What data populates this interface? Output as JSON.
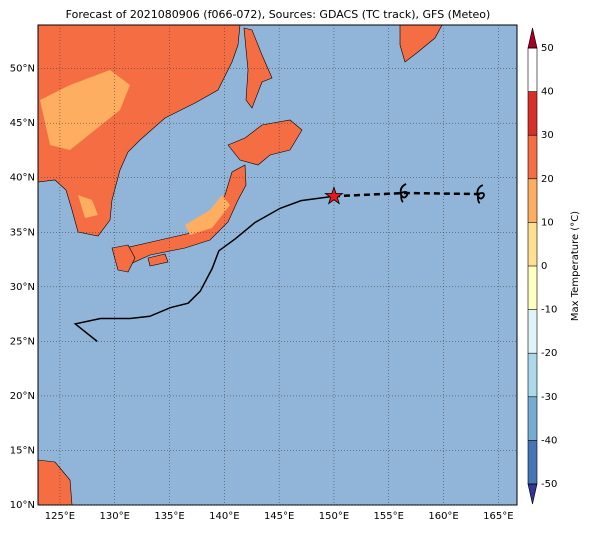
{
  "chart_data": {
    "type": "map",
    "title": "Forecast of 2021080906 (f066-072), Sources: GDACS (TC track), GFS (Meteo)",
    "xlim": [
      123,
      166.7
    ],
    "ylim": [
      10,
      54
    ],
    "xticks": [
      {
        "value": 125,
        "label": "125°E"
      },
      {
        "value": 130,
        "label": "130°E"
      },
      {
        "value": 135,
        "label": "135°E"
      },
      {
        "value": 140,
        "label": "140°E"
      },
      {
        "value": 145,
        "label": "145°E"
      },
      {
        "value": 150,
        "label": "150°E"
      },
      {
        "value": 155,
        "label": "155°E"
      },
      {
        "value": 160,
        "label": "160°E"
      },
      {
        "value": 165,
        "label": "165°E"
      }
    ],
    "yticks": [
      {
        "value": 10,
        "label": "10°N"
      },
      {
        "value": 15,
        "label": "15°N"
      },
      {
        "value": 20,
        "label": "20°N"
      },
      {
        "value": 25,
        "label": "25°N"
      },
      {
        "value": 30,
        "label": "30°N"
      },
      {
        "value": 35,
        "label": "35°N"
      },
      {
        "value": 40,
        "label": "40°N"
      },
      {
        "value": 45,
        "label": "45°N"
      },
      {
        "value": 50,
        "label": "50°N"
      }
    ],
    "grid": true,
    "track": {
      "lon": [
        128.4,
        126.4,
        128.7,
        131.4,
        133.2,
        135.1,
        136.7,
        137.8,
        138.9,
        139.5,
        141.0,
        142.8,
        145.1,
        147.0,
        150.0
      ],
      "lat": [
        25.0,
        26.6,
        27.1,
        27.1,
        27.3,
        28.1,
        28.5,
        29.6,
        31.7,
        33.3,
        34.4,
        35.9,
        37.2,
        37.9,
        38.3
      ]
    },
    "forecast_track": {
      "lon": [
        150.0,
        156.4,
        163.4
      ],
      "lat": [
        38.3,
        38.6,
        38.5
      ]
    },
    "colorbar": {
      "label": "Max Temperature (°C)",
      "lim": [
        -50,
        50
      ],
      "ticks": [
        -50,
        -40,
        -30,
        -20,
        -10,
        0,
        10,
        20,
        30,
        40,
        50
      ],
      "colors": [
        "#313695",
        "#4575b4",
        "#74add1",
        "#abd9e9",
        "#e0f3f8",
        "#ffffbf",
        "#fee090",
        "#fdae61",
        "#f46d43",
        "#d73027",
        "#a50026"
      ]
    }
  }
}
